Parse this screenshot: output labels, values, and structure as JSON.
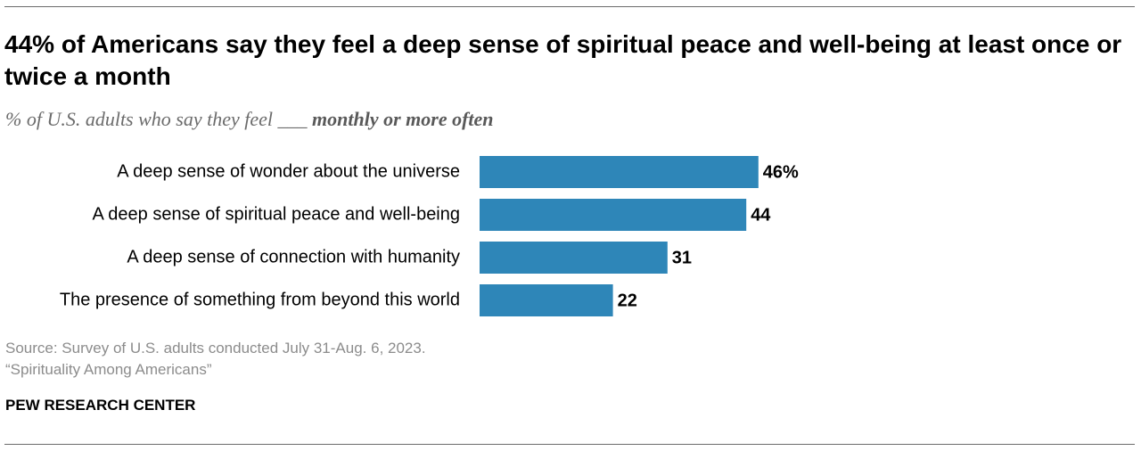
{
  "title": "44% of Americans say they feel a deep sense of spiritual peace and well-being at least once or twice a month",
  "subtitle": {
    "prefix": "% of U.S. adults who say they feel ___ ",
    "emphasis": "monthly or more often"
  },
  "chart_data": {
    "type": "bar",
    "orientation": "horizontal",
    "categories": [
      "A deep sense of wonder about the universe",
      "A deep sense of spiritual peace and well-being",
      "A deep sense of connection with humanity",
      "The presence of something from beyond this world"
    ],
    "values": [
      46,
      44,
      31,
      22
    ],
    "value_labels": [
      "46%",
      "44",
      "31",
      "22"
    ],
    "xlim": [
      0,
      100
    ],
    "grid": false,
    "legend": "none",
    "bar_color": "#2e86b8"
  },
  "source": {
    "line1": "Source: Survey of U.S. adults conducted July 31-Aug. 6, 2023.",
    "line2": "“Spirituality Among Americans”"
  },
  "brand": "PEW RESEARCH CENTER"
}
